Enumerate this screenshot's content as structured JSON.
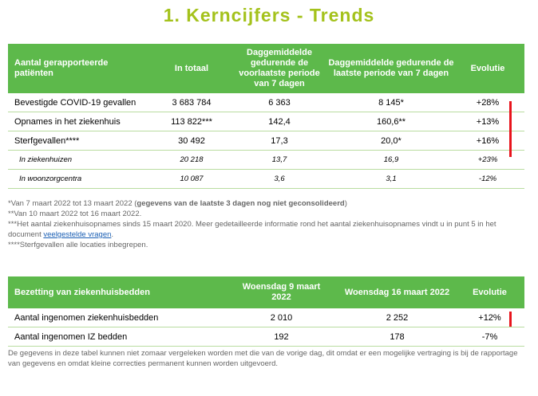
{
  "title": "1. Kerncijfers - Trends",
  "table1": {
    "header": [
      "Aantal gerapporteerde patiënten",
      "In totaal",
      "Daggemiddelde gedurende de voorlaatste periode van 7 dagen",
      "Daggemiddelde gedurende de laatste periode van 7 dagen",
      "Evolutie"
    ],
    "rows": [
      [
        "Bevestigde COVID-19 gevallen",
        "3 683 784",
        "6 363",
        "8 145*",
        "+28%"
      ],
      [
        "Opnames in het ziekenhuis",
        "113 822***",
        "142,4",
        "160,6**",
        "+13%"
      ],
      [
        "Sterfgevallen****",
        "30 492",
        "17,3",
        "20,0*",
        "+16%"
      ],
      [
        "In ziekenhuizen",
        "20 218",
        "13,7",
        "16,9",
        "+23%"
      ],
      [
        "In woonzorgcentra",
        "10 087",
        "3,6",
        "3,1",
        "-12%"
      ]
    ]
  },
  "notes": [
    {
      "text": "*Van 7 maart 2022 tot 13 maart 2022 (",
      "bold": "gegevens van de laatste 3 dagen nog niet geconsolideerd",
      "end": ")"
    },
    {
      "text": "**Van 10 maart 2022 tot 16 maart 2022."
    },
    {
      "text": "***Het aantal ziekenhuisopnames sinds 15 maart 2020. Meer gedetailleerde informatie rond het aantal ziekenhuisopnames vindt u in punt 5 in het document ",
      "link": "veelgestelde vragen",
      "end": "."
    },
    {
      "text": "****Sterfgevallen alle locaties inbegrepen."
    }
  ],
  "table2": {
    "header": [
      "Bezetting van ziekenhuisbedden",
      "Woensdag 9 maart 2022",
      "Woensdag 16 maart 2022",
      "Evolutie"
    ],
    "rows": [
      [
        "Aantal ingenomen ziekenhuisbedden",
        "2 010",
        "2 252",
        "+12%"
      ],
      [
        "Aantal ingenomen IZ bedden",
        "192",
        "178",
        "-7%"
      ]
    ]
  },
  "footer": "De gegevens in deze tabel kunnen niet zomaar vergeleken worden met die van de vorige dag, dit omdat er een mogelijke vertraging is bij de rapportage van gegevens en omdat kleine correcties permanent kunnen worden uitgevoerd."
}
